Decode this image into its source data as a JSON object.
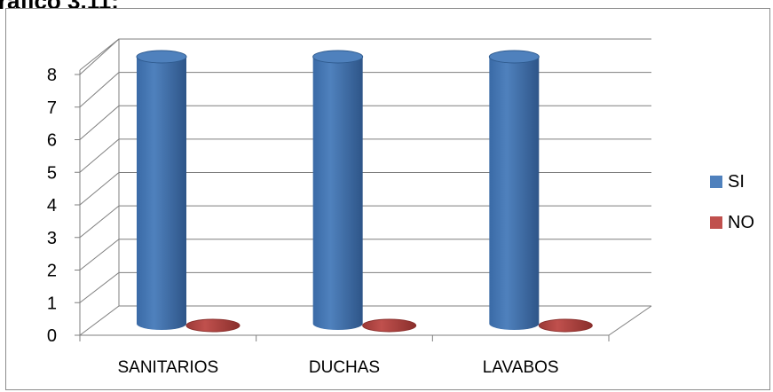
{
  "chart_data": {
    "type": "bar",
    "title": "",
    "title_fragment": "ráfico 3.11:",
    "categories": [
      "SANITARIOS",
      "DUCHAS",
      "LAVABOS"
    ],
    "series": [
      {
        "name": "SI",
        "values": [
          8,
          8,
          8
        ],
        "color": "#4F81BD"
      },
      {
        "name": "NO",
        "values": [
          0,
          0,
          0
        ],
        "color": "#C0504D"
      }
    ],
    "ylim": [
      0,
      8
    ],
    "yticks": [
      0,
      1,
      2,
      3,
      4,
      5,
      6,
      7,
      8
    ],
    "xlabel": "",
    "ylabel": "",
    "grid": true,
    "legend_position": "right",
    "style": "3d-cylinder"
  }
}
